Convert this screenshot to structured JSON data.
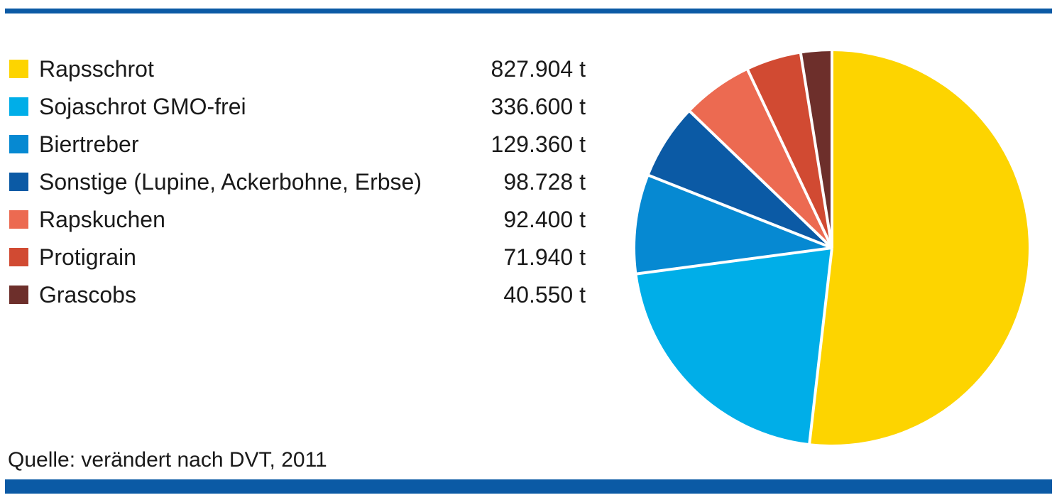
{
  "page": {
    "background": "#ffffff",
    "rule_color": "#0b5aa5",
    "text_color": "#1a1a1a"
  },
  "source_note": "Quelle: verändert nach DVT, 2011",
  "legend": {
    "items": [
      {
        "label": "Rapsschrot",
        "value": "827.904 t",
        "color": "#fdd400"
      },
      {
        "label": "Sojaschrot GMO-frei",
        "value": "336.600 t",
        "color": "#00aee8"
      },
      {
        "label": "Biertreber",
        "value": "129.360 t",
        "color": "#0689d2"
      },
      {
        "label": "Sonstige (Lupine, Ackerbohne, Erbse)",
        "value": "98.728 t",
        "color": "#0b5aa5"
      },
      {
        "label": "Rapskuchen",
        "value": "92.400 t",
        "color": "#ec6a51"
      },
      {
        "label": "Protigrain",
        "value": "71.940 t",
        "color": "#d14a32"
      },
      {
        "label": "Grascobs",
        "value": "40.550 t",
        "color": "#6d2f2b"
      }
    ]
  },
  "chart_data": {
    "type": "pie",
    "unit": "t",
    "categories": [
      "Rapsschrot",
      "Sojaschrot GMO-frei",
      "Biertreber",
      "Sonstige (Lupine, Ackerbohne, Erbse)",
      "Rapskuchen",
      "Protigrain",
      "Grascobs"
    ],
    "values": [
      827904,
      336600,
      129360,
      98728,
      92400,
      71940,
      40550
    ],
    "value_labels": [
      "827.904 t",
      "336.600 t",
      "129.360 t",
      "98.728 t",
      "92.400 t",
      "71.940 t",
      "40.550 t"
    ],
    "colors": [
      "#fdd400",
      "#00aee8",
      "#0689d2",
      "#0b5aa5",
      "#ec6a51",
      "#d14a32",
      "#6d2f2b"
    ],
    "start_angle_deg_from_top": 0,
    "direction": "clockwise",
    "separator_color": "#ffffff",
    "legend_position": "left",
    "title": "",
    "source": "Quelle: verändert nach DVT, 2011"
  }
}
